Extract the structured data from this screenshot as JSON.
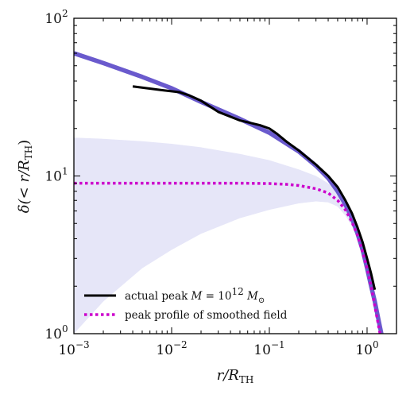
{
  "chart_data": {
    "type": "line",
    "xscale": "log",
    "yscale": "log",
    "xlim": [
      0.001,
      2.0
    ],
    "ylim": [
      1,
      100
    ],
    "xlabel": "r/R_TH",
    "ylabel": "δ(< r/R_TH)",
    "x_ticks": [
      {
        "base": "10",
        "exp": "−3",
        "value": 0.001
      },
      {
        "base": "10",
        "exp": "−2",
        "value": 0.01
      },
      {
        "base": "10",
        "exp": "−1",
        "value": 0.1
      },
      {
        "base": "10",
        "exp": "0",
        "value": 1
      }
    ],
    "y_ticks": [
      {
        "base": "10",
        "exp": "0",
        "value": 1
      },
      {
        "base": "10",
        "exp": "1",
        "value": 10
      },
      {
        "base": "10",
        "exp": "2",
        "value": 100
      }
    ],
    "grid": false,
    "legend_position": "bottom-left",
    "colors": {
      "analytic_curve": "#6a5acd",
      "band": "#e6e6f8",
      "actual_peak": "#000000",
      "smoothed_peak": "#cc00cc"
    },
    "band": {
      "x": [
        0.001,
        0.002,
        0.005,
        0.01,
        0.02,
        0.05,
        0.1,
        0.2,
        0.3,
        0.4,
        0.5,
        0.6,
        0.7,
        0.8,
        1.0,
        1.2,
        1.4
      ],
      "upper": [
        17.5,
        17.2,
        16.6,
        16.0,
        15.2,
        13.8,
        12.6,
        11.0,
        10.0,
        9.0,
        8.0,
        6.8,
        5.6,
        4.6,
        3.0,
        1.8,
        1.0
      ],
      "lower": [
        1.0,
        1.6,
        2.6,
        3.4,
        4.3,
        5.4,
        6.1,
        6.7,
        6.9,
        6.8,
        6.4,
        5.6,
        4.8,
        4.0,
        2.6,
        1.6,
        1.0
      ]
    },
    "series": [
      {
        "style": "thick-solid",
        "x": [
          0.001,
          0.002,
          0.005,
          0.01,
          0.02,
          0.05,
          0.1,
          0.2,
          0.3,
          0.4,
          0.5,
          0.6,
          0.7,
          0.8,
          0.9,
          1.0,
          1.1,
          1.2,
          1.3,
          1.4
        ],
        "y": [
          60,
          52,
          42.5,
          36,
          29.5,
          23,
          18.8,
          14.3,
          11.6,
          9.7,
          8.0,
          6.6,
          5.4,
          4.3,
          3.4,
          2.6,
          2.0,
          1.6,
          1.25,
          1.0
        ]
      },
      {
        "name": "actual peak M = 10^12 M⊙",
        "style": "solid",
        "x": [
          0.004,
          0.008,
          0.012,
          0.015,
          0.02,
          0.03,
          0.05,
          0.08,
          0.1,
          0.12,
          0.15,
          0.2,
          0.3,
          0.4,
          0.5,
          0.6,
          0.7,
          0.8,
          0.9,
          1.0,
          1.1,
          1.2
        ],
        "y": [
          37,
          35,
          34,
          32.5,
          30,
          25.5,
          22.5,
          21,
          20,
          18.5,
          16.5,
          14.5,
          11.8,
          10,
          8.5,
          7.0,
          5.8,
          4.7,
          3.8,
          3.0,
          2.4,
          1.9
        ]
      },
      {
        "name": "peak profile of smoothed field",
        "style": "dotted",
        "x": [
          0.001,
          0.002,
          0.005,
          0.01,
          0.02,
          0.05,
          0.1,
          0.15,
          0.2,
          0.3,
          0.4,
          0.5,
          0.6,
          0.7,
          0.8,
          0.9,
          1.0,
          1.1,
          1.2,
          1.3,
          1.4
        ],
        "y": [
          9.0,
          9.0,
          9.0,
          9.0,
          9.0,
          9.0,
          8.95,
          8.85,
          8.7,
          8.3,
          7.8,
          7.0,
          6.1,
          5.1,
          4.2,
          3.3,
          2.6,
          2.0,
          1.5,
          1.15,
          0.9
        ]
      }
    ],
    "legend": [
      {
        "style": "solid",
        "text": "actual peak M = 10^12 M⊙"
      },
      {
        "style": "dotted",
        "text": "peak profile of smoothed field"
      }
    ]
  }
}
